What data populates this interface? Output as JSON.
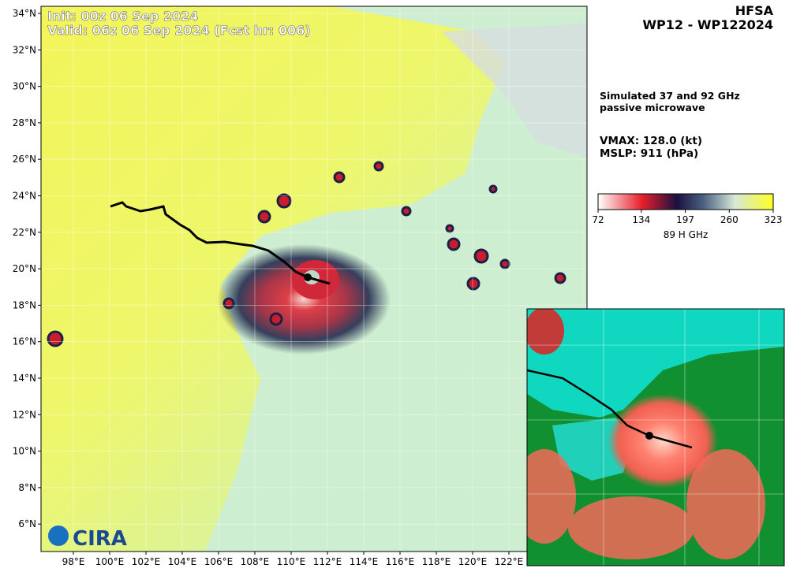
{
  "header": {
    "init": "Init:   00z 06 Sep 2024",
    "valid": "Valid: 06z 06 Sep 2024 (Fcst hr: 006)",
    "model": "HFSA",
    "storm": "WP12 - WP122024"
  },
  "info": {
    "product_line1": "Simulated 37 and 92 GHz",
    "product_line2": "passive microwave",
    "vmax": "VMAX: 128.0 (kt)",
    "mslp": "MSLP:  911 (hPa)"
  },
  "colorbar": {
    "ticks": [
      72,
      134,
      197,
      260,
      323
    ],
    "label": "89 H GHz"
  },
  "lat_ticks": [
    "34°N",
    "32°N",
    "30°N",
    "28°N",
    "26°N",
    "24°N",
    "22°N",
    "20°N",
    "18°N",
    "16°N",
    "14°N",
    "12°N",
    "10°N",
    "8°N",
    "6°N"
  ],
  "lon_ticks": [
    "98°E",
    "100°E",
    "102°E",
    "104°E",
    "106°E",
    "108°E",
    "110°E",
    "112°E",
    "114°E",
    "116°E",
    "118°E",
    "120°E",
    "122°E"
  ],
  "logo": "CIRA"
}
